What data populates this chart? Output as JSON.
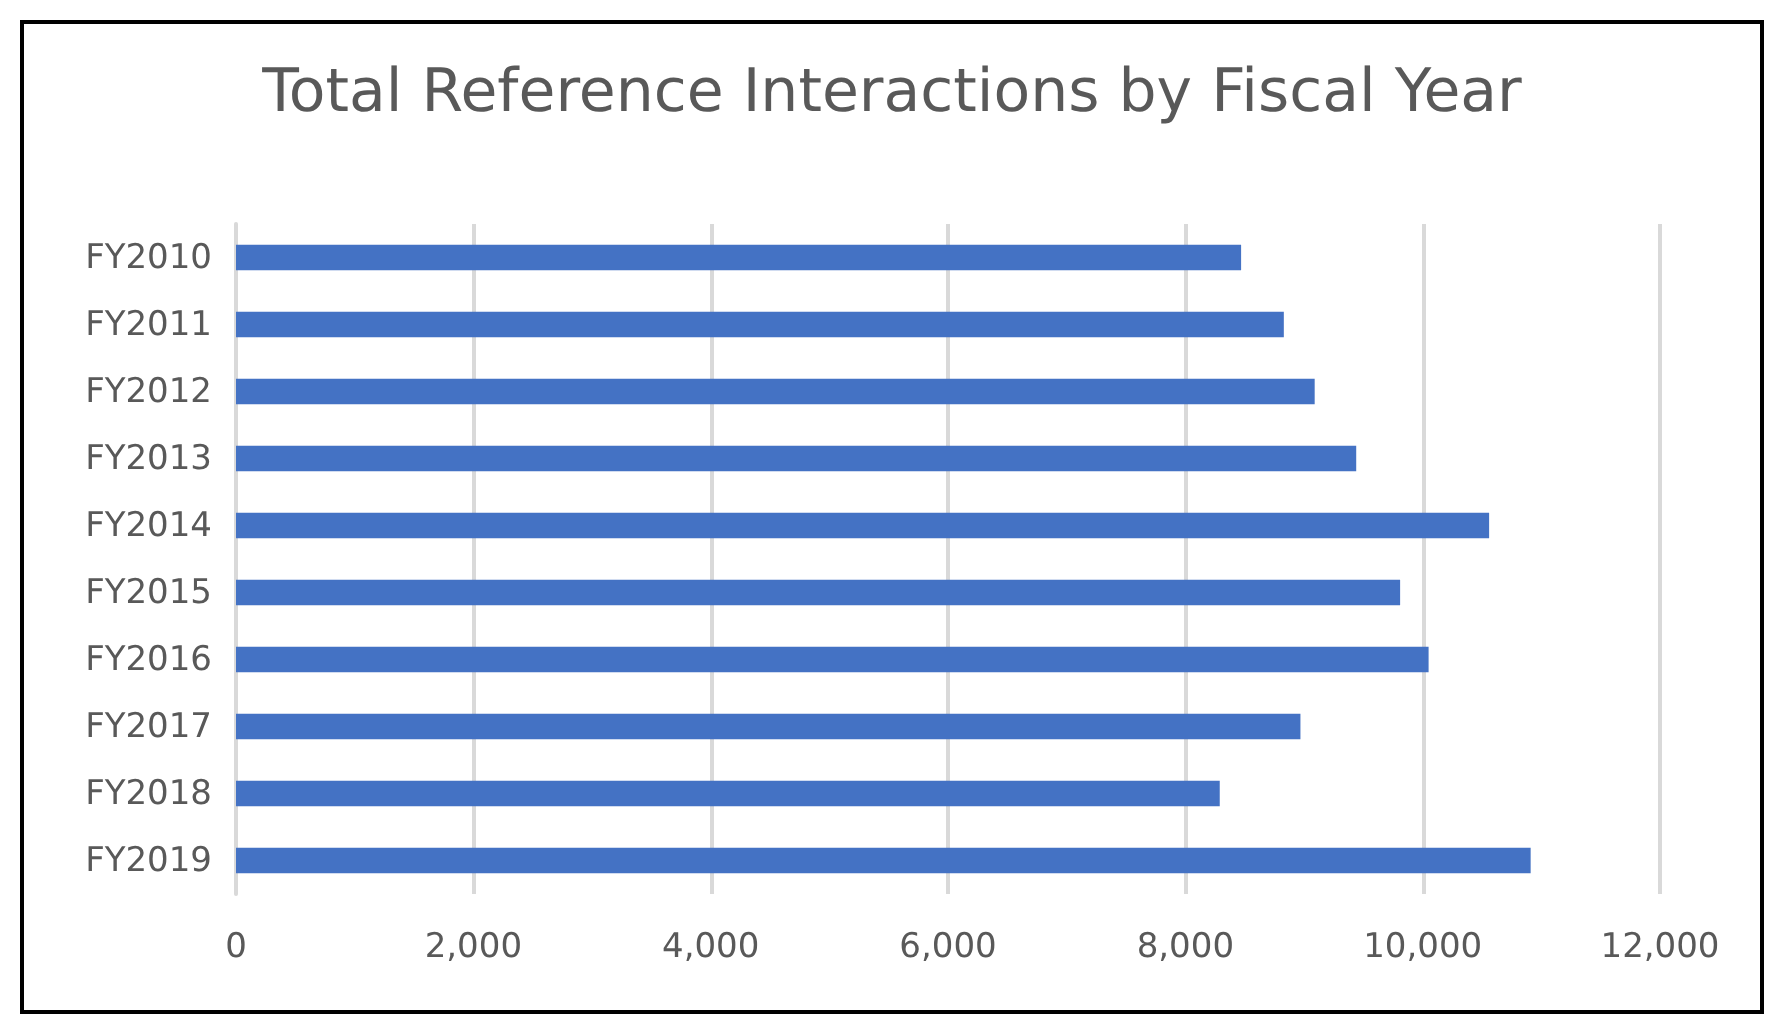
{
  "chart_data": {
    "type": "bar",
    "orientation": "horizontal",
    "title": "Total Reference Interactions by Fiscal Year",
    "categories": [
      "FY2010",
      "FY2011",
      "FY2012",
      "FY2013",
      "FY2014",
      "FY2015",
      "FY2016",
      "FY2017",
      "FY2018",
      "FY2019"
    ],
    "values": [
      8470,
      8830,
      9090,
      9440,
      10560,
      9810,
      10050,
      8970,
      8290,
      10910
    ],
    "color": "#4472c4",
    "xlim": [
      0,
      12000
    ],
    "xticks": [
      {
        "value": 0,
        "label": "0"
      },
      {
        "value": 2000,
        "label": "2,000"
      },
      {
        "value": 4000,
        "label": "4,000"
      },
      {
        "value": 6000,
        "label": "6,000"
      },
      {
        "value": 8000,
        "label": "8,000"
      },
      {
        "value": 10000,
        "label": "10,000"
      },
      {
        "value": 12000,
        "label": "12,000"
      }
    ],
    "grid": "x"
  }
}
